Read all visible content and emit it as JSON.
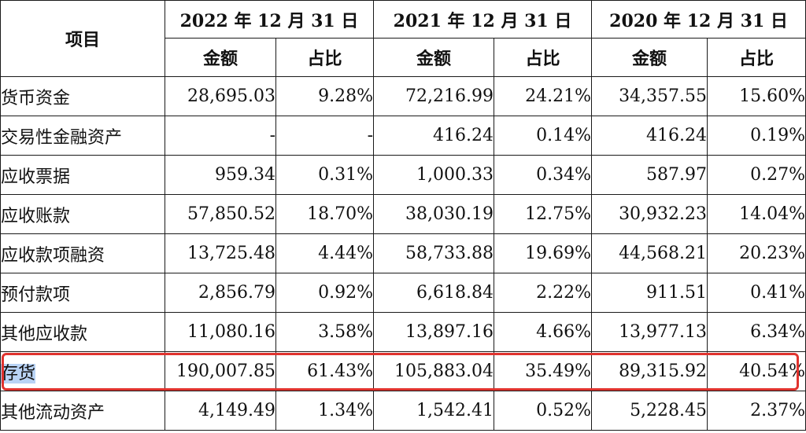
{
  "header": {
    "item_label": "项目",
    "periods": [
      {
        "label": "2022 年 12 月 31 日"
      },
      {
        "label": "2021 年 12 月 31 日"
      },
      {
        "label": "2020 年 12 月 31 日"
      }
    ],
    "amount_label": "金额",
    "ratio_label": "占比"
  },
  "rows": [
    {
      "label": "货币资金",
      "v2022": "28,695.03",
      "r2022": "9.28%",
      "v2021": "72,216.99",
      "r2021": "24.21%",
      "v2020": "34,357.55",
      "r2020": "15.60%"
    },
    {
      "label": "交易性金融资产",
      "v2022": "-",
      "r2022": "-",
      "v2021": "416.24",
      "r2021": "0.14%",
      "v2020": "416.24",
      "r2020": "0.19%"
    },
    {
      "label": "应收票据",
      "v2022": "959.34",
      "r2022": "0.31%",
      "v2021": "1,000.33",
      "r2021": "0.34%",
      "v2020": "587.97",
      "r2020": "0.27%"
    },
    {
      "label": "应收账款",
      "v2022": "57,850.52",
      "r2022": "18.70%",
      "v2021": "38,030.19",
      "r2021": "12.75%",
      "v2020": "30,932.23",
      "r2020": "14.04%"
    },
    {
      "label": "应收款项融资",
      "v2022": "13,725.48",
      "r2022": "4.44%",
      "v2021": "58,733.88",
      "r2021": "19.69%",
      "v2020": "44,568.21",
      "r2020": "20.23%"
    },
    {
      "label": "预付款项",
      "v2022": "2,856.79",
      "r2022": "0.92%",
      "v2021": "6,618.84",
      "r2021": "2.22%",
      "v2020": "911.51",
      "r2020": "0.41%"
    },
    {
      "label": "其他应收款",
      "v2022": "11,080.16",
      "r2022": "3.58%",
      "v2021": "13,897.16",
      "r2021": "4.66%",
      "v2020": "13,977.13",
      "r2020": "6.34%"
    },
    {
      "label": "存货",
      "v2022": "190,007.85",
      "r2022": "61.43%",
      "v2021": "105,883.04",
      "r2021": "35.49%",
      "v2020": "89,315.92",
      "r2020": "40.54%"
    },
    {
      "label": "其他流动资产",
      "v2022": "4,149.49",
      "r2022": "1.34%",
      "v2021": "1,542.41",
      "r2021": "0.52%",
      "v2020": "5,228.45",
      "r2020": "2.37%"
    }
  ],
  "highlight": {
    "row_label": "存货",
    "box_color": "#e0332e",
    "text_bg_color": "#b9d3f5"
  }
}
